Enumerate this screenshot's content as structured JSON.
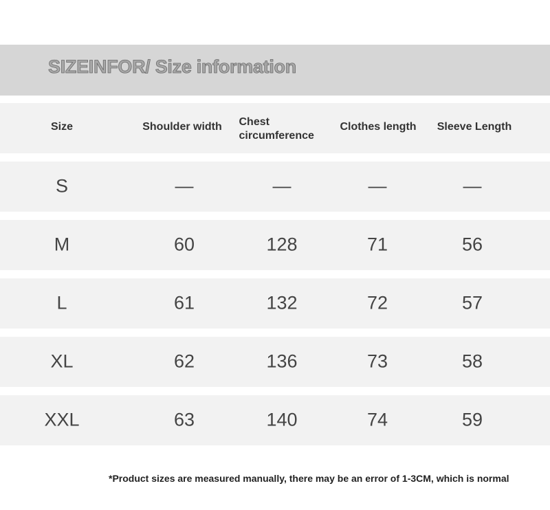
{
  "title": "SIZEINFOR/ Size information",
  "headers": [
    "Size",
    "Shoulder width",
    "Chest circumference",
    "Clothes length",
    "Sleeve Length"
  ],
  "rows": [
    [
      "S",
      "—",
      "—",
      "—",
      "—"
    ],
    [
      "M",
      "60",
      "128",
      "71",
      "56"
    ],
    [
      "L",
      "61",
      "132",
      "72",
      "57"
    ],
    [
      "XL",
      "62",
      "136",
      "73",
      "58"
    ],
    [
      "XXL",
      "63",
      "140",
      "74",
      "59"
    ]
  ],
  "note": "*Product sizes are measured manually, there may be an error of 1-3CM, which is normal"
}
